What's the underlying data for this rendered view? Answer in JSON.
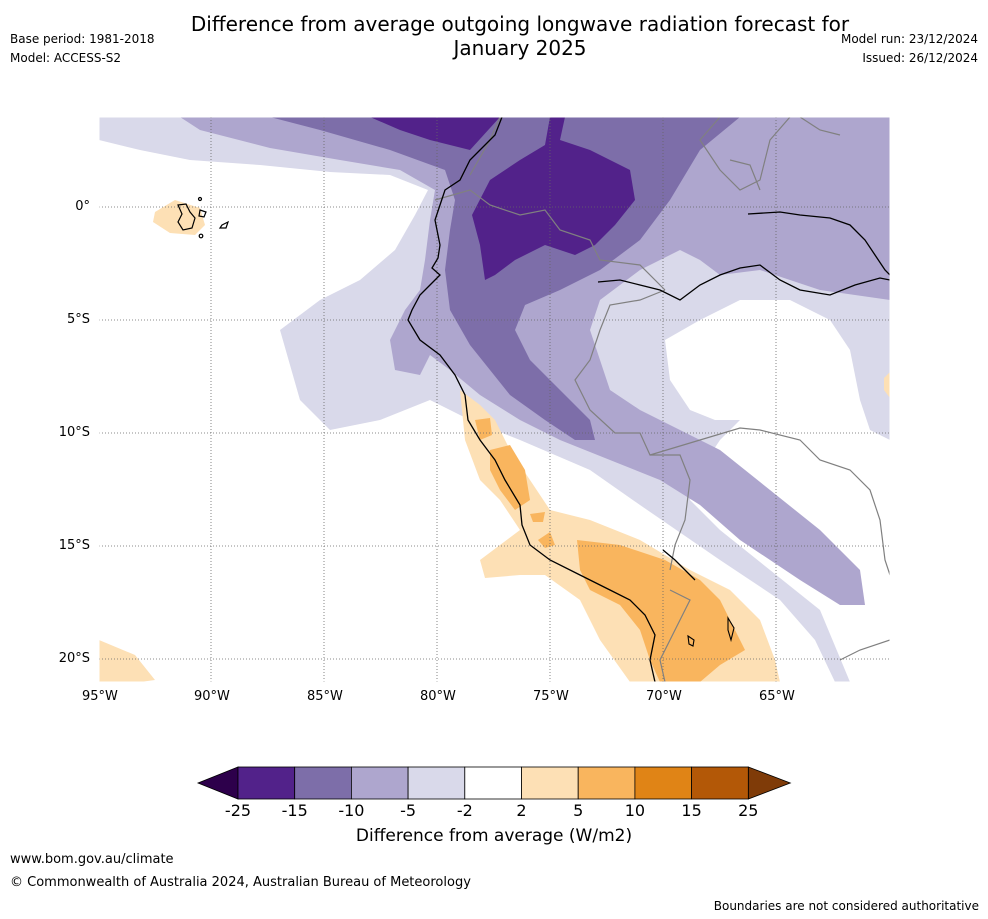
{
  "header": {
    "title_line1": "Difference from average outgoing longwave radiation forecast for",
    "title_line2": "January 2025",
    "base_period": "Base period: 1981-2018",
    "model": "Model: ACCESS-S2",
    "model_run": "Model run: 23/12/2024",
    "issued": "Issued: 26/12/2024"
  },
  "map": {
    "lon_labels": [
      "95°W",
      "90°W",
      "85°W",
      "80°W",
      "75°W",
      "70°W",
      "65°W"
    ],
    "lat_labels": [
      "0°",
      "5°S",
      "10°S",
      "15°S",
      "20°S"
    ]
  },
  "colorbar": {
    "label": "Difference from average (W/m2)",
    "ticks": [
      "-25",
      "-15",
      "-10",
      "-5",
      "-2",
      "2",
      "5",
      "10",
      "15",
      "25"
    ],
    "colors": [
      "#52228a",
      "#7d6ea9",
      "#aea6ce",
      "#d9d9ea",
      "#ffffff",
      "#fde0b5",
      "#f9b55e",
      "#e08416",
      "#b35807"
    ],
    "extend_low_color": "#2d004b",
    "extend_high_color": "#7f3b08"
  },
  "footer": {
    "url": "www.bom.gov.au/climate",
    "copyright": "© Commonwealth of Australia 2024, Australian Bureau of Meteorology",
    "disclaimer": "Boundaries are not considered authoritative"
  }
}
